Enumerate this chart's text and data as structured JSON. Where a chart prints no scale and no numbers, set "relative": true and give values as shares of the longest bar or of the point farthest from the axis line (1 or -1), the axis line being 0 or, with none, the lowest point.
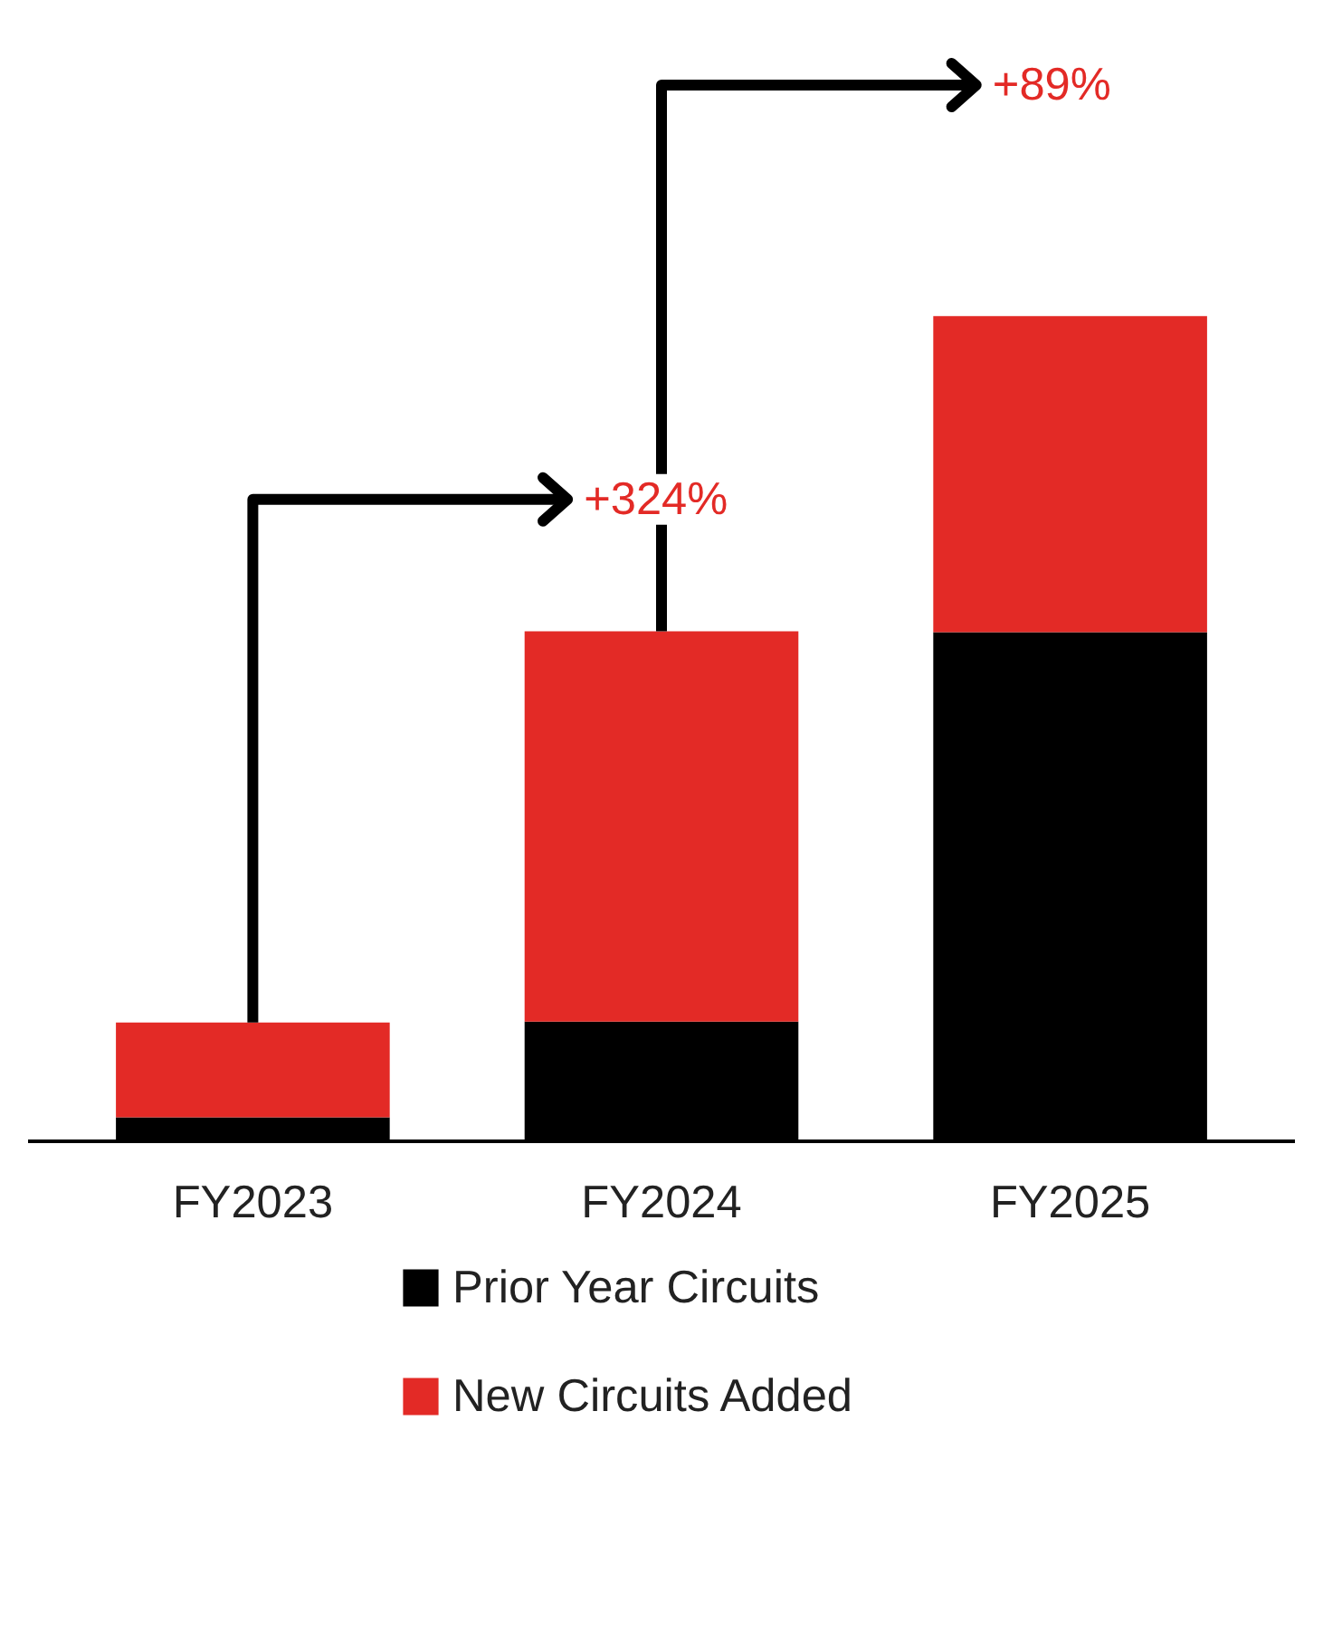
{
  "chart_data": {
    "type": "bar",
    "stacked": true,
    "relative": true,
    "categories": [
      "FY2023",
      "FY2024",
      "FY2025"
    ],
    "series": [
      {
        "name": "Prior Year Circuits",
        "color": "#000000",
        "values": [
          0.029,
          0.145,
          0.617
        ]
      },
      {
        "name": "New Circuits Added",
        "color": "#e32a26",
        "values": [
          0.115,
          0.473,
          0.383
        ]
      }
    ],
    "annotations": [
      "+324%",
      "+89%"
    ],
    "legend": "bottom"
  }
}
